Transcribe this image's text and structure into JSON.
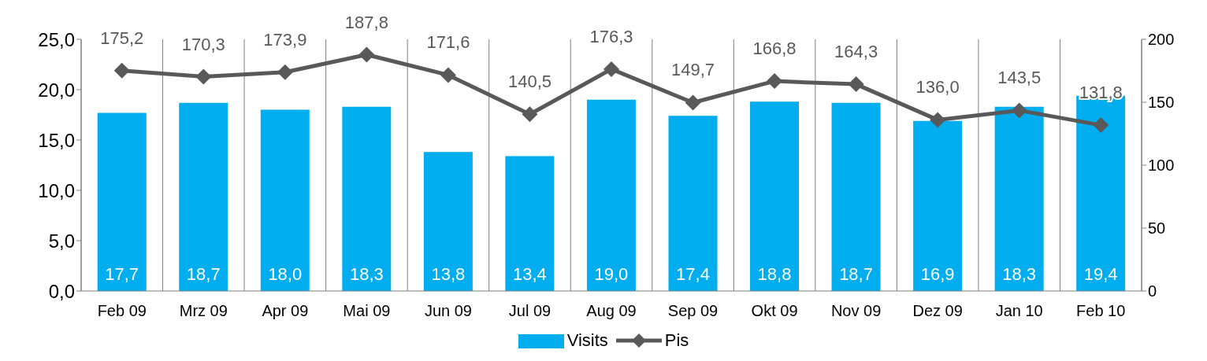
{
  "chart_data": {
    "type": "bar",
    "categories": [
      "Feb 09",
      "Mrz 09",
      "Apr 09",
      "Mai 09",
      "Jun 09",
      "Jul 09",
      "Aug 09",
      "Sep 09",
      "Okt 09",
      "Nov 09",
      "Dez 09",
      "Jan 10",
      "Feb 10"
    ],
    "series": [
      {
        "name": "Visits",
        "color": "#00adef",
        "values": [
          17.7,
          18.7,
          18.0,
          18.3,
          13.8,
          13.4,
          19.0,
          17.4,
          18.8,
          18.7,
          16.9,
          18.3,
          19.4
        ],
        "value_labels": [
          "17,7",
          "18,7",
          "18,0",
          "18,3",
          "13,8",
          "13,4",
          "19,0",
          "17,4",
          "18,8",
          "18,7",
          "16,9",
          "18,3",
          "19,4"
        ]
      },
      {
        "name": "Pis",
        "type": "line",
        "axis": "y2",
        "color": "#595959",
        "marker": "diamond",
        "values": [
          175.2,
          170.3,
          173.9,
          187.8,
          171.6,
          140.5,
          176.3,
          149.7,
          166.8,
          164.3,
          136.0,
          143.5,
          131.8
        ],
        "value_labels": [
          "175,2",
          "170,3",
          "173,9",
          "187,8",
          "171,6",
          "140,5",
          "176,3",
          "149,7",
          "166,8",
          "164,3",
          "136,0",
          "143,5",
          "131,8"
        ]
      }
    ],
    "ylim": [
      0,
      25
    ],
    "yticks": [
      {
        "value": 0,
        "label": "0,0"
      },
      {
        "value": 5,
        "label": "5,0"
      },
      {
        "value": 10,
        "label": "10,0"
      },
      {
        "value": 15,
        "label": "15,0"
      },
      {
        "value": 20,
        "label": "20,0"
      },
      {
        "value": 25,
        "label": "25,0"
      }
    ],
    "y2lim": [
      0,
      200
    ],
    "y2ticks": [
      0,
      50,
      100,
      150,
      200
    ],
    "grid": "x",
    "legend": "bottom"
  }
}
